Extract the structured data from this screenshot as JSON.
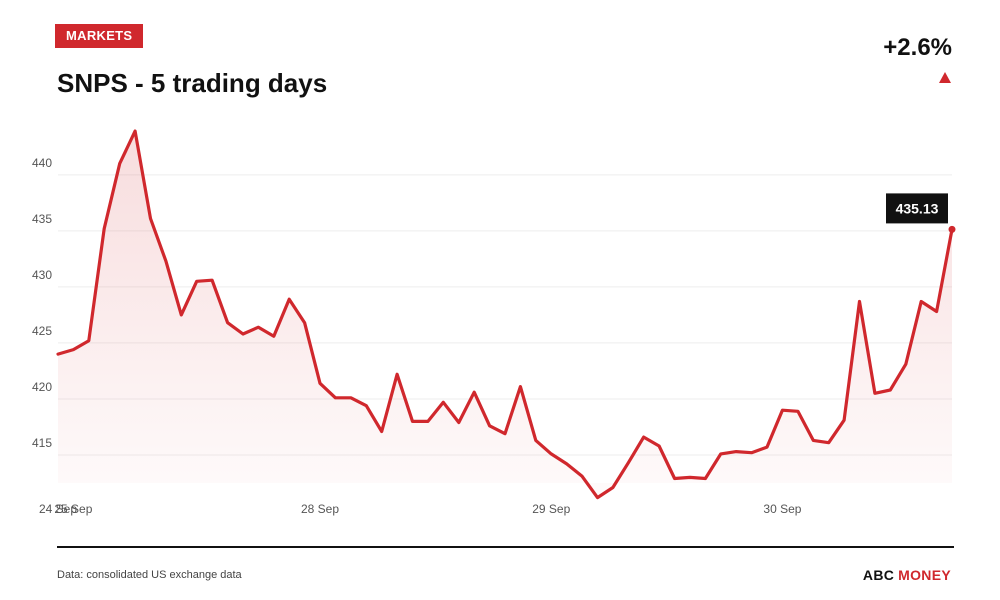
{
  "header": {
    "tag": "MARKETS",
    "title": "SNPS - 5 trading days",
    "change": "+2.6%"
  },
  "footer": {
    "source": "Data: consolidated US exchange data",
    "brand_primary": "ABC",
    "brand_accent": "MONEY"
  },
  "colors": {
    "accent": "#d0282d",
    "line": "#d0282d",
    "grid": "#eeeeee",
    "label_bg": "#111111"
  },
  "chart_data": {
    "type": "line",
    "title": "SNPS - 5 trading days",
    "xlabel": "",
    "ylabel": "",
    "ylim": [
      412.5,
      444
    ],
    "y_ticks": [
      415,
      420,
      425,
      430,
      435,
      440
    ],
    "grid": true,
    "x_ticks": [
      {
        "label": "24 Sep",
        "index": 0
      },
      {
        "label": "25 Sep",
        "index": 1
      },
      {
        "label": "28 Sep",
        "index": 17
      },
      {
        "label": "29 Sep",
        "index": 32
      },
      {
        "label": "30 Sep",
        "index": 47
      }
    ],
    "last_value_label": "435.13",
    "values": [
      424.0,
      424.4,
      425.2,
      435.2,
      441.0,
      443.9,
      436.1,
      432.3,
      427.5,
      430.5,
      430.6,
      426.8,
      425.8,
      426.4,
      425.6,
      428.9,
      426.8,
      421.4,
      420.1,
      420.1,
      419.4,
      417.1,
      422.2,
      418.0,
      418.0,
      419.7,
      417.9,
      420.6,
      417.6,
      416.9,
      421.1,
      416.3,
      415.1,
      414.2,
      413.1,
      411.2,
      412.1,
      414.3,
      416.6,
      415.8,
      412.9,
      413.0,
      412.9,
      415.1,
      415.3,
      415.2,
      415.7,
      419.0,
      418.9,
      416.3,
      416.1,
      418.1,
      428.7,
      420.5,
      420.8,
      423.1,
      428.7,
      427.8,
      435.13
    ]
  }
}
